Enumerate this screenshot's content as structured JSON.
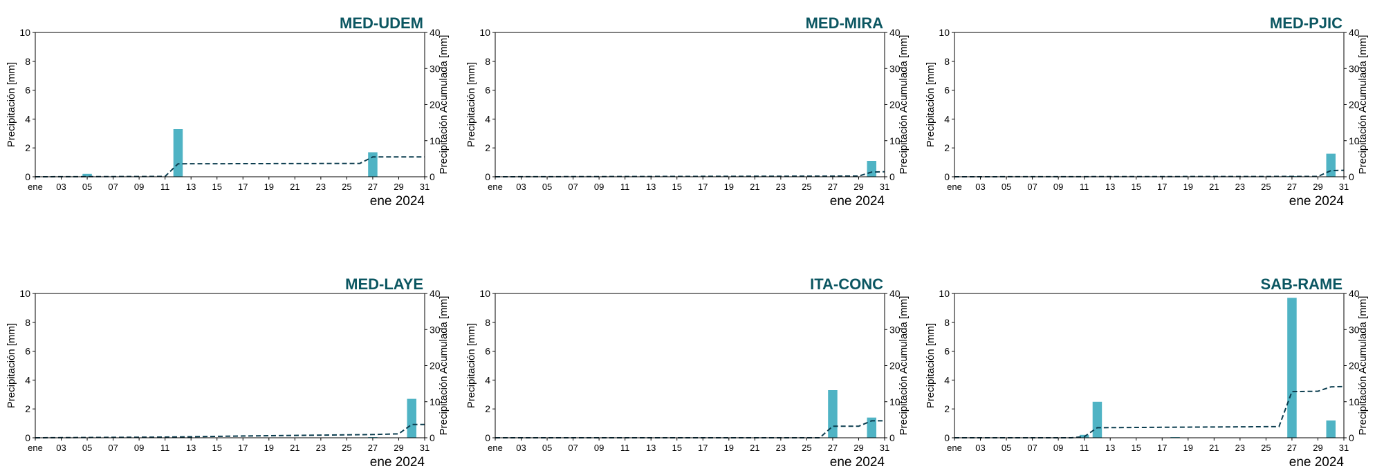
{
  "colors": {
    "bar": "#4fb3c4",
    "line": "#0b3d4f",
    "title": "#0b5661",
    "axis": "#000000"
  },
  "shared": {
    "ylabel_left": "Precipitación [mm]",
    "ylabel_right": "Precipitación Acumulada [mm]",
    "xlabel": "ene 2024",
    "x_tick_labels": [
      "ene",
      "03",
      "05",
      "07",
      "09",
      "11",
      "13",
      "15",
      "17",
      "19",
      "21",
      "23",
      "25",
      "27",
      "29",
      "31"
    ],
    "y_left_ticks": [
      "0",
      "2",
      "4",
      "6",
      "8",
      "10"
    ],
    "y_right_ticks": [
      "0",
      "10",
      "20",
      "30",
      "40"
    ]
  },
  "chart_data": [
    {
      "type": "bar",
      "title": "MED-UDEM",
      "xlabel": "ene 2024",
      "ylabel": "Precipitación [mm]",
      "ylabel_right": "Precipitación Acumulada [mm]",
      "xlim": [
        1,
        31
      ],
      "ylim": [
        0,
        10
      ],
      "ylim_right": [
        0,
        40
      ],
      "x": [
        5,
        12,
        27
      ],
      "values": [
        0.2,
        3.3,
        1.7
      ],
      "cumulative": {
        "x": [
          1,
          11,
          12,
          26,
          27,
          31
        ],
        "values": [
          0,
          0.1,
          3.6,
          3.7,
          5.5,
          5.5
        ]
      }
    },
    {
      "type": "bar",
      "title": "MED-MIRA",
      "xlabel": "ene 2024",
      "ylabel": "Precipitación [mm]",
      "ylabel_right": "Precipitación Acumulada [mm]",
      "xlim": [
        1,
        31
      ],
      "ylim": [
        0,
        10
      ],
      "ylim_right": [
        0,
        40
      ],
      "x": [
        30
      ],
      "values": [
        1.1
      ],
      "cumulative": {
        "x": [
          1,
          29,
          30,
          31
        ],
        "values": [
          0,
          0.2,
          1.3,
          1.4
        ]
      }
    },
    {
      "type": "bar",
      "title": "MED-PJIC",
      "xlabel": "ene 2024",
      "ylabel": "Precipitación [mm]",
      "ylabel_right": "Precipitación Acumulada [mm]",
      "xlim": [
        1,
        31
      ],
      "ylim": [
        0,
        10
      ],
      "ylim_right": [
        0,
        40
      ],
      "x": [
        27,
        30
      ],
      "values": [
        0.05,
        1.6
      ],
      "cumulative": {
        "x": [
          1,
          29,
          30,
          31
        ],
        "values": [
          0,
          0.1,
          1.7,
          1.8
        ]
      }
    },
    {
      "type": "bar",
      "title": "MED-LAYE",
      "xlabel": "ene 2024",
      "ylabel": "Precipitación [mm]",
      "ylabel_right": "Precipitación Acumulada [mm]",
      "xlim": [
        1,
        31
      ],
      "ylim": [
        0,
        10
      ],
      "ylim_right": [
        0,
        40
      ],
      "x": [
        27,
        30
      ],
      "values": [
        0.05,
        2.7
      ],
      "cumulative": {
        "x": [
          1,
          11,
          17,
          27,
          29,
          30,
          31
        ],
        "values": [
          0,
          0.2,
          0.5,
          0.9,
          1.1,
          3.7,
          3.7
        ]
      }
    },
    {
      "type": "bar",
      "title": "ITA-CONC",
      "xlabel": "ene 2024",
      "ylabel": "Precipitación [mm]",
      "ylabel_right": "Precipitación Acumulada [mm]",
      "xlim": [
        1,
        31
      ],
      "ylim": [
        0,
        10
      ],
      "ylim_right": [
        0,
        40
      ],
      "x": [
        27,
        30
      ],
      "values": [
        3.3,
        1.4
      ],
      "cumulative": {
        "x": [
          1,
          26,
          27,
          29,
          30,
          31
        ],
        "values": [
          0,
          0,
          3.2,
          3.2,
          4.7,
          4.7
        ]
      }
    },
    {
      "type": "bar",
      "title": "SAB-RAME",
      "xlabel": "ene 2024",
      "ylabel": "Precipitación [mm]",
      "ylabel_right": "Precipitación Acumulada [mm]",
      "xlim": [
        1,
        31
      ],
      "ylim": [
        0,
        10
      ],
      "ylim_right": [
        0,
        40
      ],
      "x": [
        11,
        12,
        18,
        27,
        30
      ],
      "values": [
        0.2,
        2.5,
        0.05,
        9.7,
        1.2
      ],
      "cumulative": {
        "x": [
          1,
          10,
          11,
          12,
          17,
          26,
          27,
          29,
          30,
          31
        ],
        "values": [
          0,
          0,
          0.3,
          2.8,
          2.9,
          3.1,
          12.8,
          12.9,
          14.1,
          14.2
        ]
      }
    }
  ]
}
